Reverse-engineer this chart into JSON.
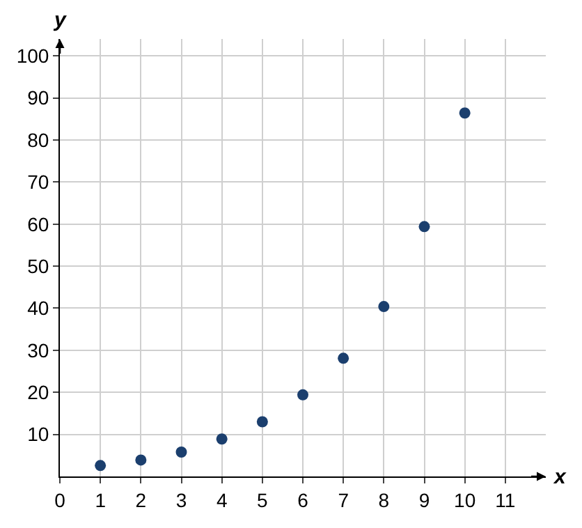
{
  "chart_data": {
    "type": "scatter",
    "xlabel": "x",
    "ylabel": "y",
    "x": [
      1,
      2,
      3,
      4,
      5,
      6,
      7,
      8,
      9,
      10
    ],
    "series": [
      {
        "color": "#1b3f6e",
        "values": [
          2.6,
          3.9,
          5.8,
          8.9,
          13,
          19.4,
          28.1,
          40.4,
          59.4,
          86.4
        ]
      }
    ],
    "xlim": [
      0,
      12
    ],
    "ylim": [
      0,
      104
    ],
    "xticks": [
      0,
      1,
      2,
      3,
      4,
      5,
      6,
      7,
      8,
      9,
      10,
      11
    ],
    "yticks": [
      10,
      20,
      30,
      40,
      50,
      60,
      70,
      80,
      90,
      100
    ],
    "grid": true,
    "marker": "circle"
  }
}
